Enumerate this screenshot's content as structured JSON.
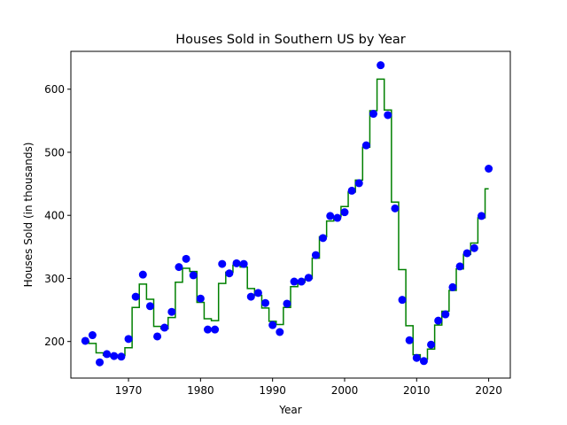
{
  "chart_data": {
    "type": "scatter",
    "title": "Houses Sold in Southern US by Year",
    "xlabel": "Year",
    "ylabel": "Houses Sold (in thousands)",
    "xlim": [
      1962,
      2023
    ],
    "ylim": [
      142,
      660
    ],
    "xticks": [
      1970,
      1980,
      1990,
      2000,
      2010,
      2020
    ],
    "yticks": [
      200,
      300,
      400,
      500,
      600
    ],
    "grid": false,
    "legend": "none",
    "colors": {
      "points": "#0000ff",
      "step_line": "#008000"
    },
    "x": [
      1964,
      1965,
      1966,
      1967,
      1968,
      1969,
      1970,
      1971,
      1972,
      1973,
      1974,
      1975,
      1976,
      1977,
      1978,
      1979,
      1980,
      1981,
      1982,
      1983,
      1984,
      1985,
      1986,
      1987,
      1988,
      1989,
      1990,
      1991,
      1992,
      1993,
      1994,
      1995,
      1996,
      1997,
      1998,
      1999,
      2000,
      2001,
      2002,
      2003,
      2004,
      2005,
      2006,
      2007,
      2008,
      2009,
      2010,
      2011,
      2012,
      2013,
      2014,
      2015,
      2016,
      2017,
      2018,
      2019,
      2020
    ],
    "series": [
      {
        "style": "points",
        "values": [
          201,
          210,
          167,
          180,
          177,
          176,
          204,
          271,
          306,
          256,
          208,
          222,
          247,
          318,
          331,
          305,
          268,
          219,
          219,
          323,
          308,
          324,
          323,
          271,
          277,
          261,
          226,
          215,
          260,
          295,
          295,
          301,
          337,
          364,
          399,
          396,
          405,
          439,
          451,
          511,
          561,
          638,
          559,
          411,
          266,
          202,
          174,
          169,
          195,
          233,
          243,
          286,
          319,
          340,
          348,
          399,
          474
        ]
      },
      {
        "style": "step",
        "values": [
          200,
          197,
          182,
          178,
          176,
          178,
          190,
          254,
          291,
          267,
          224,
          220,
          238,
          294,
          316,
          311,
          262,
          236,
          233,
          292,
          310,
          321,
          318,
          284,
          273,
          253,
          232,
          227,
          254,
          287,
          294,
          300,
          332,
          366,
          391,
          398,
          414,
          437,
          456,
          508,
          566,
          616,
          567,
          421,
          314,
          225,
          179,
          172,
          188,
          226,
          248,
          281,
          315,
          338,
          356,
          396,
          442
        ]
      }
    ]
  }
}
